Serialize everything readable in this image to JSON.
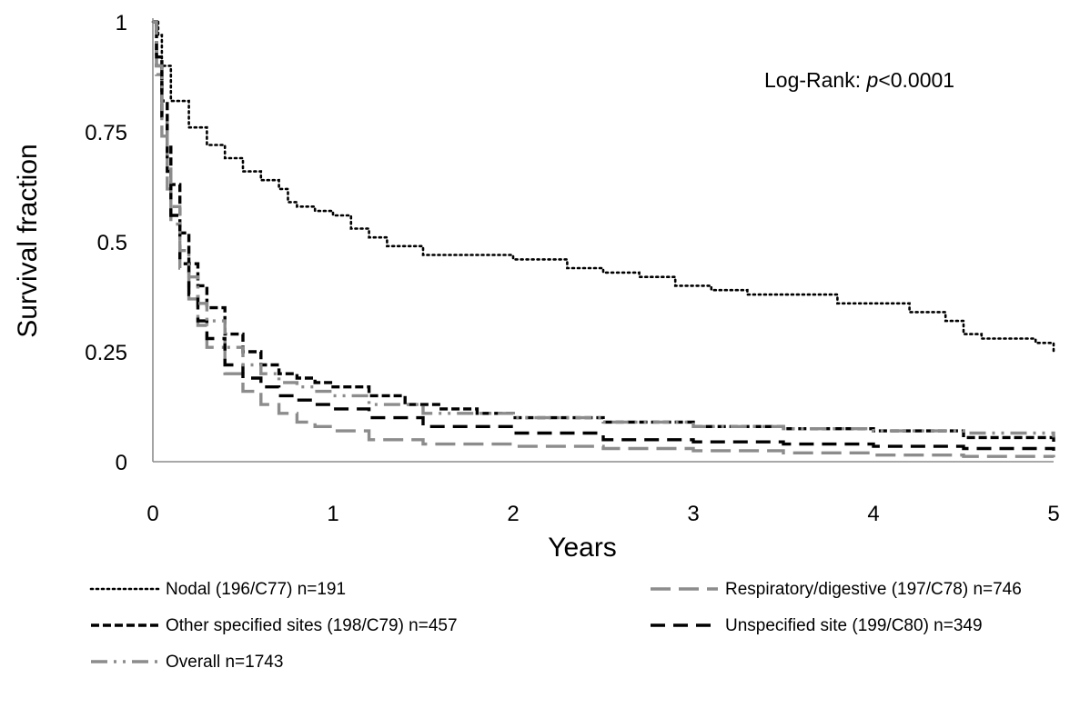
{
  "chart_data": {
    "type": "line",
    "title": "",
    "xlabel": "Years",
    "ylabel": "Survival fraction",
    "xlim": [
      0,
      5
    ],
    "ylim": [
      0,
      1
    ],
    "x_ticks": [
      "0",
      "1",
      "2",
      "3",
      "4",
      "5"
    ],
    "y_ticks": [
      "0",
      "0.25",
      "0.5",
      "0.75",
      "1"
    ],
    "grid": false,
    "legend_position": "bottom",
    "annotation": {
      "prefix": "Log-Rank: ",
      "italic": "p",
      "suffix": "<0.0001"
    },
    "series": [
      {
        "name": "Nodal (196/C77) n=191",
        "style": "dotted",
        "color": "#000000",
        "x": [
          0,
          0.03,
          0.05,
          0.1,
          0.2,
          0.3,
          0.4,
          0.5,
          0.6,
          0.7,
          0.75,
          0.8,
          0.9,
          1.0,
          1.1,
          1.2,
          1.3,
          1.5,
          1.7,
          2.0,
          2.2,
          2.3,
          2.5,
          2.7,
          2.9,
          3.0,
          3.1,
          3.3,
          3.5,
          3.8,
          4.0,
          4.2,
          4.4,
          4.5,
          4.6,
          4.7,
          4.8,
          4.9,
          5.0
        ],
        "y": [
          1.0,
          0.97,
          0.9,
          0.82,
          0.76,
          0.72,
          0.69,
          0.66,
          0.64,
          0.62,
          0.59,
          0.58,
          0.57,
          0.56,
          0.53,
          0.51,
          0.49,
          0.47,
          0.47,
          0.46,
          0.46,
          0.44,
          0.43,
          0.42,
          0.4,
          0.4,
          0.39,
          0.38,
          0.38,
          0.36,
          0.36,
          0.34,
          0.32,
          0.29,
          0.28,
          0.28,
          0.28,
          0.27,
          0.25
        ]
      },
      {
        "name": "Respiratory/digestive (197/C78) n=746",
        "style": "long-dash",
        "color": "#8c8c8c",
        "x": [
          0,
          0.02,
          0.05,
          0.08,
          0.1,
          0.15,
          0.2,
          0.25,
          0.3,
          0.4,
          0.5,
          0.6,
          0.7,
          0.8,
          0.9,
          1.0,
          1.2,
          1.5,
          2.0,
          2.5,
          3.0,
          3.5,
          4.0,
          4.5,
          5.0
        ],
        "y": [
          1.0,
          0.88,
          0.74,
          0.62,
          0.54,
          0.44,
          0.37,
          0.31,
          0.26,
          0.2,
          0.16,
          0.13,
          0.11,
          0.09,
          0.08,
          0.07,
          0.05,
          0.04,
          0.035,
          0.03,
          0.025,
          0.02,
          0.015,
          0.012,
          0.01
        ]
      },
      {
        "name": "Other specified sites (198/C79) n=457",
        "style": "short-dash",
        "color": "#000000",
        "x": [
          0,
          0.02,
          0.05,
          0.08,
          0.1,
          0.15,
          0.2,
          0.25,
          0.3,
          0.4,
          0.5,
          0.6,
          0.7,
          0.8,
          0.9,
          1.0,
          1.2,
          1.4,
          1.6,
          1.8,
          2.0,
          2.5,
          3.0,
          3.5,
          4.0,
          4.5,
          5.0
        ],
        "y": [
          1.0,
          0.92,
          0.82,
          0.72,
          0.63,
          0.52,
          0.45,
          0.4,
          0.35,
          0.29,
          0.25,
          0.22,
          0.2,
          0.19,
          0.18,
          0.17,
          0.15,
          0.13,
          0.12,
          0.11,
          0.1,
          0.09,
          0.08,
          0.075,
          0.07,
          0.055,
          0.045
        ]
      },
      {
        "name": "Unspecified site (199/C80) n=349",
        "style": "dash",
        "color": "#000000",
        "x": [
          0,
          0.02,
          0.05,
          0.08,
          0.1,
          0.15,
          0.2,
          0.25,
          0.3,
          0.4,
          0.5,
          0.6,
          0.7,
          0.8,
          0.9,
          1.0,
          1.2,
          1.5,
          2.0,
          2.5,
          3.0,
          3.5,
          4.0,
          4.5,
          5.0
        ],
        "y": [
          1.0,
          0.9,
          0.78,
          0.66,
          0.56,
          0.45,
          0.38,
          0.32,
          0.28,
          0.22,
          0.19,
          0.17,
          0.15,
          0.14,
          0.13,
          0.12,
          0.1,
          0.08,
          0.065,
          0.05,
          0.045,
          0.04,
          0.035,
          0.03,
          0.025
        ]
      },
      {
        "name": "Overall n=1743",
        "style": "dash-dot",
        "color": "#8c8c8c",
        "x": [
          0,
          0.02,
          0.05,
          0.08,
          0.1,
          0.15,
          0.2,
          0.25,
          0.3,
          0.4,
          0.5,
          0.6,
          0.7,
          0.8,
          0.9,
          1.0,
          1.2,
          1.5,
          2.0,
          2.5,
          3.0,
          3.5,
          4.0,
          4.5,
          5.0
        ],
        "y": [
          1.0,
          0.9,
          0.78,
          0.67,
          0.58,
          0.48,
          0.42,
          0.36,
          0.32,
          0.26,
          0.22,
          0.2,
          0.18,
          0.17,
          0.16,
          0.15,
          0.13,
          0.11,
          0.1,
          0.09,
          0.08,
          0.075,
          0.07,
          0.065,
          0.055
        ]
      }
    ]
  }
}
